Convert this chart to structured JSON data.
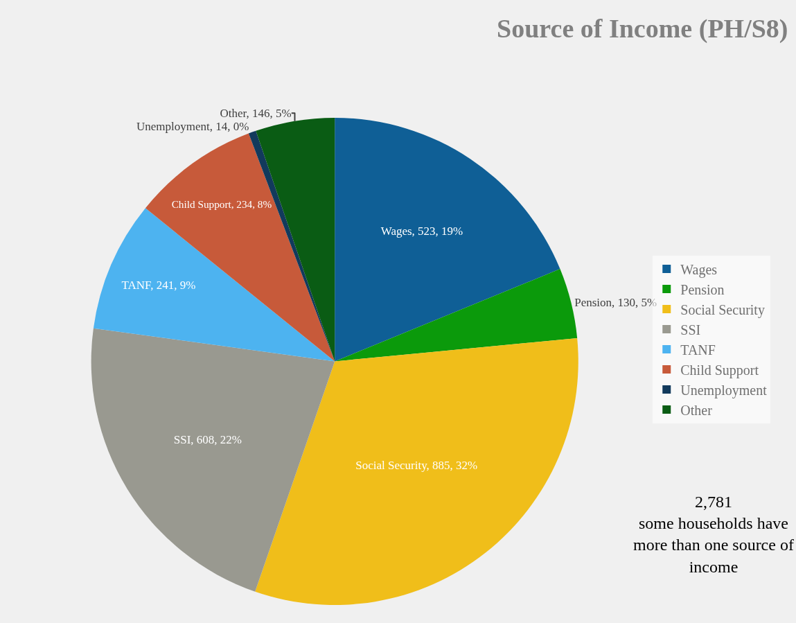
{
  "chart_data": {
    "type": "pie",
    "title": "Source of Income (PH/S8)",
    "categories": [
      "Wages",
      "Pension",
      "Social Security",
      "SSI",
      "TANF",
      "Child Support",
      "Unemployment",
      "Other"
    ],
    "values": [
      523,
      130,
      885,
      608,
      241,
      234,
      14,
      146
    ],
    "colors": [
      "#0f5f96",
      "#0b9a0b",
      "#f0be1a",
      "#999990",
      "#4db3f0",
      "#c75a3a",
      "#123a5c",
      "#0a5c14"
    ],
    "value_labels": [
      "Wages, 523, 19%",
      "Pension, 130, 5%",
      "Social Security, 885, 32%",
      "SSI, 608, 22%",
      "TANF, 241, 9%",
      "Child Support, 234, 8%",
      "Unemployment, 14, 0%",
      "Other, 146, 5%"
    ],
    "legend": "right",
    "annotations": [
      "2,781\nsome households have\nmore than one source of\nincome"
    ]
  }
}
